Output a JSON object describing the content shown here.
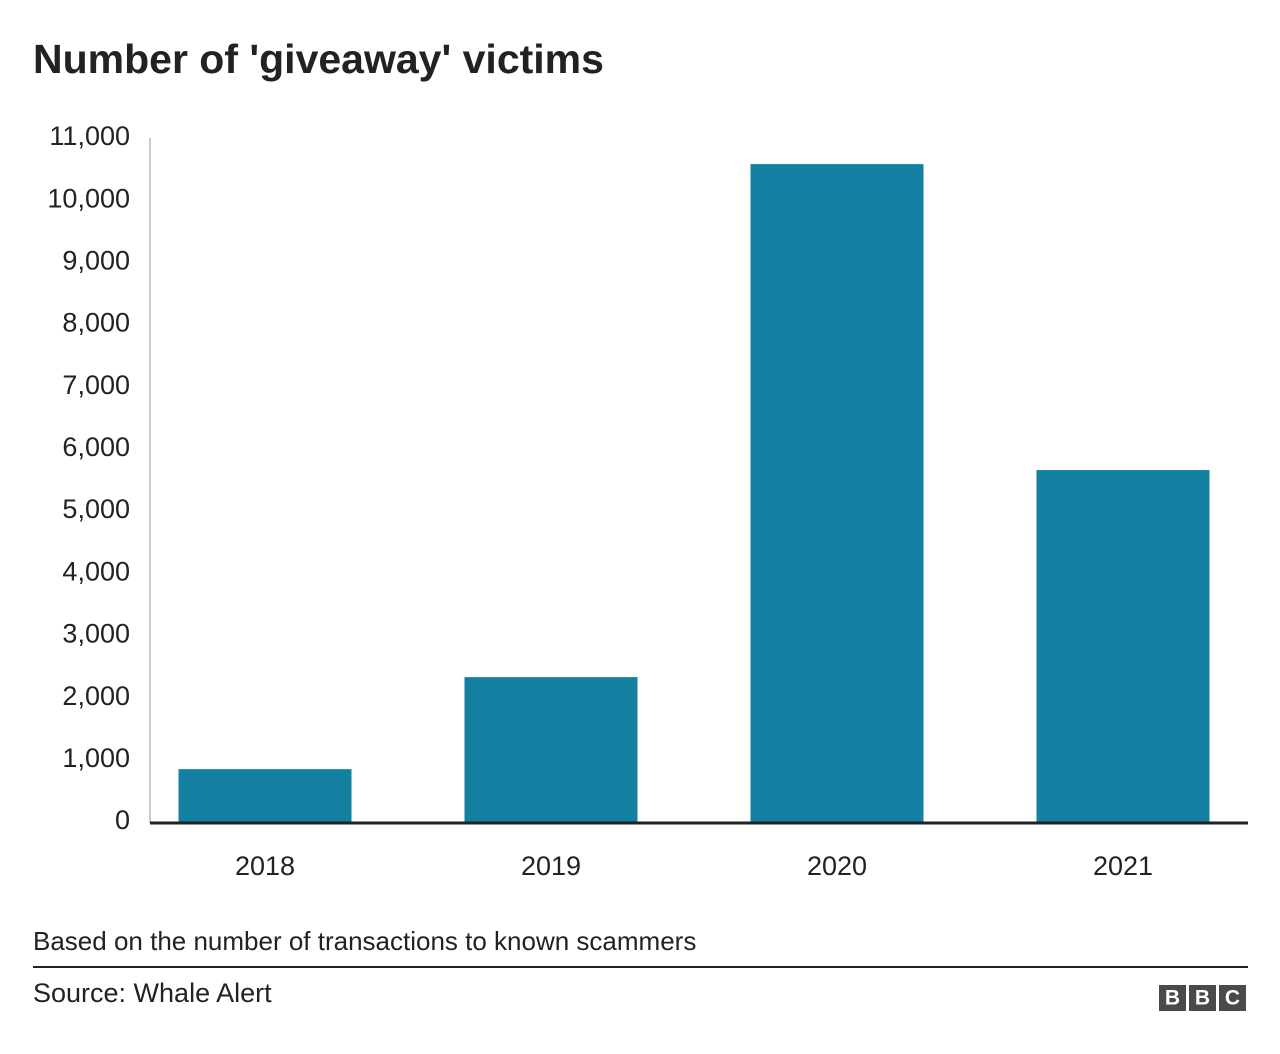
{
  "chart_data": {
    "type": "bar",
    "title": "Number of 'giveaway' victims",
    "categories": [
      "2018",
      "2019",
      "2020",
      "2021"
    ],
    "values": [
      850,
      2330,
      10580,
      5660
    ],
    "color": "#1380a1",
    "ylim": [
      0,
      11000
    ],
    "yticks": [
      0,
      {
        "value": 1000,
        "label": "1,000"
      },
      {
        "value": 2000,
        "label": "2,000"
      },
      {
        "value": 3000,
        "label": "3,000"
      },
      {
        "value": 4000,
        "label": "4,000"
      },
      {
        "value": 5000,
        "label": "5,000"
      },
      {
        "value": 6000,
        "label": "6,000"
      },
      {
        "value": 7000,
        "label": "7,000"
      },
      {
        "value": 8000,
        "label": "8,000"
      },
      {
        "value": 9000,
        "label": "9,000"
      },
      {
        "value": 10000,
        "label": "10,000"
      },
      {
        "value": 11000,
        "label": "11,000"
      }
    ],
    "grid": false,
    "note": "Based on the number of transactions to known scammers",
    "source": "Source: Whale Alert",
    "logo": [
      "B",
      "B",
      "C"
    ]
  }
}
